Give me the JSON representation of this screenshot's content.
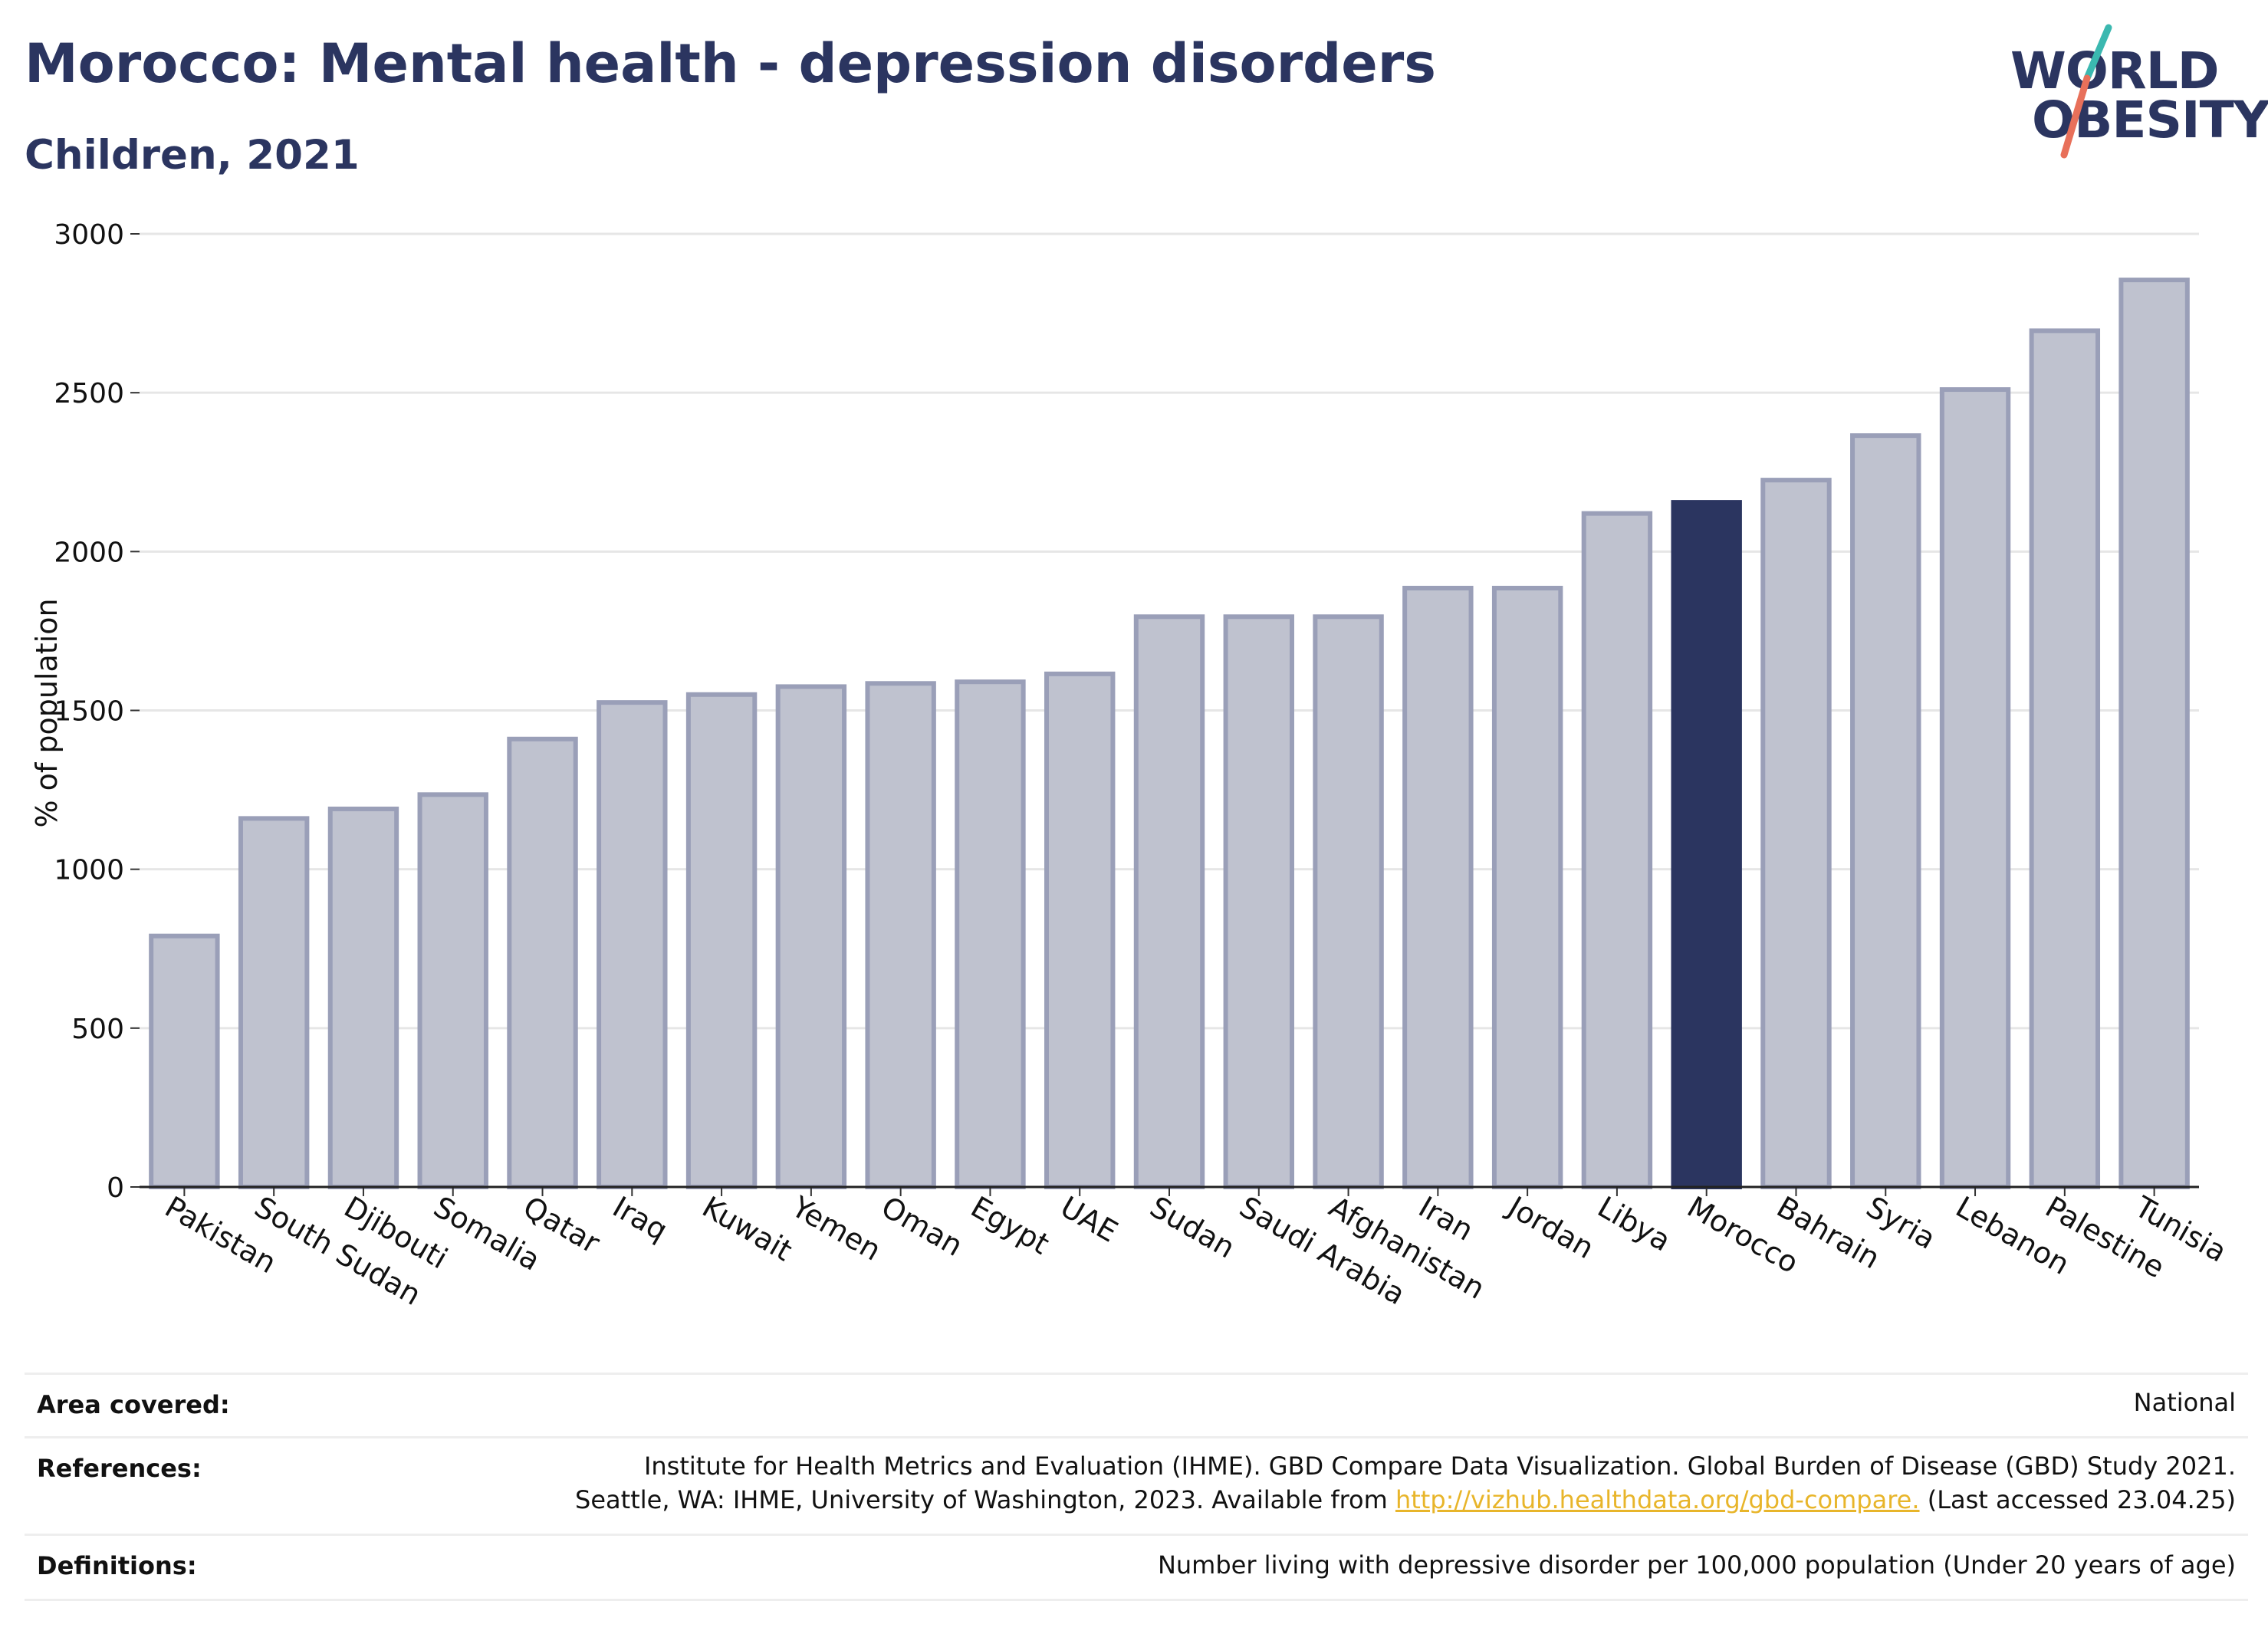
{
  "header": {
    "title": "Morocco: Mental health - depression disorders",
    "subtitle": "Children, 2021"
  },
  "logo": {
    "line1": "WORLD",
    "line2": "OBESITY",
    "icon": "slash-logo-icon",
    "colors": {
      "text": "#2b3560",
      "slash_top": "#3bb8b0",
      "slash_bottom": "#e8705a"
    }
  },
  "chart_data": {
    "type": "bar",
    "ylabel": "% of population",
    "xlabel": "",
    "ylim": [
      0,
      3000
    ],
    "yticks": [
      0,
      500,
      1000,
      1500,
      2000,
      2500,
      3000
    ],
    "grid": true,
    "categories": [
      "Pakistan",
      "South Sudan",
      "Djibouti",
      "Somalia",
      "Qatar",
      "Iraq",
      "Kuwait",
      "Yemen",
      "Oman",
      "Egypt",
      "UAE",
      "Sudan",
      "Saudi Arabia",
      "Afghanistan",
      "Iran",
      "Jordan",
      "Libya",
      "Morocco",
      "Bahrain",
      "Syria",
      "Lebanon",
      "Palestine",
      "Tunisia"
    ],
    "values": [
      790,
      1160,
      1190,
      1235,
      1410,
      1525,
      1550,
      1575,
      1585,
      1590,
      1615,
      1795,
      1795,
      1795,
      1885,
      1885,
      2120,
      2155,
      2225,
      2365,
      2510,
      2695,
      2855
    ],
    "highlight": "Morocco",
    "colors": {
      "bar": "#bfc2cf",
      "bar_edge": "#9a9fb8",
      "highlight": "#2b3560"
    }
  },
  "info": {
    "area_label": "Area covered:",
    "area_value": "National",
    "references_label": "References:",
    "references_line1": "Institute for Health Metrics and Evaluation (IHME). GBD Compare Data Visualization. Global Burden of Disease (GBD) Study 2021.",
    "references_line2_pre": "Seattle, WA: IHME, University of Washington, 2023. Available from ",
    "references_link": "http://vizhub.healthdata.org/gbd-compare.",
    "references_line2_post": " (Last accessed 23.04.25)",
    "definitions_label": "Definitions:",
    "definitions_value": "Number living with depressive disorder per 100,000 population (Under 20 years of age)"
  }
}
